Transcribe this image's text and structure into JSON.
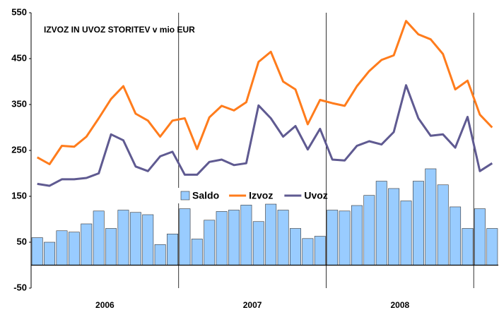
{
  "chart_data": {
    "type": "bar_line",
    "title": "IZVOZ IN UVOZ STORITEV v mio EUR",
    "categories": [
      null,
      null,
      null,
      null,
      null,
      null,
      null,
      null,
      null,
      null,
      null,
      null,
      null,
      null,
      null,
      null,
      null,
      null,
      null,
      null,
      null,
      null,
      null,
      null,
      null,
      null,
      null,
      null,
      null,
      null,
      null,
      null,
      null,
      null,
      null,
      null,
      null,
      null
    ],
    "groups": [
      "2006",
      "2007",
      "2008"
    ],
    "series": [
      {
        "name": "Saldo",
        "type": "bar",
        "color": "#99ccff",
        "values": [
          60,
          50,
          75,
          72,
          90,
          118,
          80,
          120,
          115,
          110,
          45,
          68,
          123,
          57,
          98,
          117,
          120,
          131,
          95,
          133,
          120,
          80,
          58,
          63,
          120,
          118,
          130,
          152,
          183,
          167,
          140,
          183,
          210,
          175,
          127,
          80,
          123,
          80
        ]
      },
      {
        "name": "Izvoz",
        "type": "line",
        "color": "#ff7c1c",
        "values": [
          235,
          220,
          260,
          258,
          280,
          320,
          362,
          390,
          330,
          315,
          280,
          315,
          320,
          253,
          322,
          347,
          337,
          355,
          443,
          465,
          400,
          383,
          307,
          360,
          353,
          347,
          390,
          423,
          447,
          457,
          532,
          503,
          492,
          460,
          383,
          402,
          328,
          300
        ]
      },
      {
        "name": "Uvoz",
        "type": "line",
        "color": "#5f5a91",
        "values": [
          177,
          173,
          187,
          187,
          190,
          200,
          285,
          272,
          215,
          205,
          237,
          247,
          197,
          197,
          225,
          230,
          218,
          222,
          348,
          320,
          280,
          303,
          252,
          297,
          230,
          228,
          260,
          270,
          263,
          290,
          392,
          320,
          282,
          285,
          256,
          323,
          205,
          222
        ]
      }
    ],
    "ylim": [
      -50,
      550
    ],
    "yticks": [
      -50,
      50,
      150,
      250,
      350,
      450,
      550
    ]
  }
}
